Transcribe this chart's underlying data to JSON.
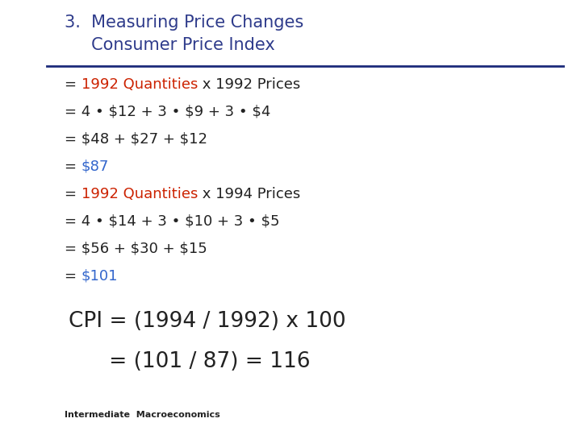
{
  "title_line1": "3.  Measuring Price Changes",
  "title_line2": "     Consumer Price Index",
  "title_color": "#2E3B8B",
  "background_color": "#FFFFFF",
  "separator_color": "#1C2A7A",
  "body_lines": [
    [
      {
        "text": "= ",
        "color": "#222222"
      },
      {
        "text": "1992 Quantities",
        "color": "#CC2200"
      },
      {
        "text": " x 1992 Prices",
        "color": "#222222"
      }
    ],
    [
      {
        "text": "= 4 • $12 + 3 • $9 + 3 • $4",
        "color": "#222222"
      }
    ],
    [
      {
        "text": "= $48 + $27 + $12",
        "color": "#222222"
      }
    ],
    [
      {
        "text": "= ",
        "color": "#222222"
      },
      {
        "text": "$87",
        "color": "#3366CC"
      }
    ],
    [
      {
        "text": "= ",
        "color": "#222222"
      },
      {
        "text": "1992 Quantities",
        "color": "#CC2200"
      },
      {
        "text": " x 1994 Prices",
        "color": "#222222"
      }
    ],
    [
      {
        "text": "= 4 • $14 + 3 • $10 + 3 • $5",
        "color": "#222222"
      }
    ],
    [
      {
        "text": "= $56 + $30 + $15",
        "color": "#222222"
      }
    ],
    [
      {
        "text": "= ",
        "color": "#222222"
      },
      {
        "text": "$101",
        "color": "#3366CC"
      }
    ]
  ],
  "cpi_line1": "CPI = (1994 / 1992) x 100",
  "cpi_line2": "      = (101 / 87) = 116",
  "cpi_color": "#222222",
  "footer": "Intermediate  Macroeconomics",
  "footer_color": "#222222",
  "title_fontsize": 15,
  "body_fontsize": 13,
  "cpi_fontsize": 19
}
